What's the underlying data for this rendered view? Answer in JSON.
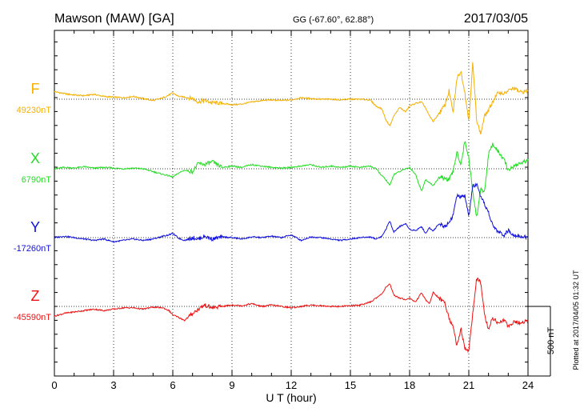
{
  "header": {
    "station": "Mawson (MAW)  [GA]",
    "coords": "GG (-67.60°,  62.88°)",
    "date": "2017/03/05"
  },
  "footer": {
    "plotted": "Plotted at 2017/04/05 01:32 UT"
  },
  "chart_data": {
    "type": "line",
    "title": "Mawson (MAW)  [GA]",
    "xlabel": "U T (hour)",
    "xlim": [
      0,
      24
    ],
    "xticks": [
      "0",
      "3",
      "6",
      "9",
      "12",
      "15",
      "18",
      "21",
      "24"
    ],
    "grid": true,
    "scale_bar": "500 nT",
    "colors": {
      "F": "#f5b000",
      "X": "#22dd22",
      "Y": "#1010dd",
      "Z": "#ee1111"
    },
    "series": [
      {
        "name": "F",
        "baseline": "49230nT",
        "color": "#f5b000",
        "x": [
          0,
          0.5,
          1,
          1.5,
          2,
          2.5,
          3,
          3.5,
          4,
          4.5,
          5,
          5.5,
          5.8,
          6,
          6.3,
          6.6,
          7,
          7.3,
          7.6,
          8,
          8.5,
          9,
          9.5,
          10,
          10.5,
          11,
          11.5,
          12,
          12.5,
          13,
          13.5,
          14,
          14.5,
          15,
          15.5,
          16,
          16.3,
          16.6,
          16.8,
          17,
          17.2,
          17.5,
          17.8,
          18,
          18.3,
          18.6,
          18.8,
          19,
          19.2,
          19.5,
          19.8,
          20,
          20.2,
          20.4,
          20.6,
          20.8,
          21,
          21.2,
          21.4,
          21.6,
          21.8,
          22,
          22.2,
          22.5,
          22.8,
          23,
          23.3,
          23.6,
          24
        ],
        "y": [
          55,
          40,
          30,
          25,
          35,
          20,
          15,
          10,
          20,
          5,
          -10,
          10,
          30,
          45,
          20,
          15,
          5,
          -20,
          -10,
          -25,
          -30,
          -40,
          -35,
          -20,
          -10,
          -5,
          -10,
          -5,
          10,
          5,
          0,
          0,
          -5,
          0,
          0,
          -5,
          -50,
          -70,
          -150,
          -190,
          -120,
          -60,
          -90,
          -50,
          -30,
          -20,
          -60,
          -120,
          -160,
          -100,
          -40,
          60,
          -100,
          150,
          200,
          50,
          -160,
          260,
          -150,
          -250,
          -120,
          -80,
          -20,
          50,
          40,
          60,
          80,
          50,
          60
        ]
      },
      {
        "name": "X",
        "baseline": "6790nT",
        "color": "#22dd22",
        "x": [
          0,
          0.5,
          1,
          1.5,
          2,
          2.5,
          3,
          3.5,
          4,
          4.5,
          5,
          5.5,
          5.8,
          6,
          6.3,
          6.6,
          7,
          7.3,
          7.6,
          8,
          8.5,
          9,
          9.5,
          10,
          10.5,
          11,
          11.5,
          12,
          12.5,
          13,
          13.5,
          14,
          14.5,
          15,
          15.5,
          16,
          16.3,
          16.6,
          16.8,
          17,
          17.2,
          17.5,
          17.8,
          18,
          18.3,
          18.6,
          18.8,
          19,
          19.2,
          19.5,
          19.8,
          20,
          20.2,
          20.4,
          20.6,
          20.8,
          21,
          21.2,
          21.4,
          21.6,
          21.8,
          22,
          22.2,
          22.5,
          22.8,
          23,
          23.3,
          23.6,
          24
        ],
        "y": [
          0,
          10,
          5,
          15,
          5,
          10,
          5,
          0,
          5,
          0,
          -20,
          -40,
          -50,
          -60,
          -30,
          -10,
          -20,
          40,
          30,
          50,
          10,
          20,
          10,
          30,
          20,
          10,
          5,
          10,
          20,
          30,
          10,
          20,
          10,
          20,
          10,
          20,
          0,
          -50,
          -80,
          -120,
          -40,
          -20,
          0,
          10,
          -40,
          -160,
          -80,
          -100,
          -120,
          -60,
          -70,
          -80,
          -20,
          120,
          30,
          200,
          80,
          -170,
          -350,
          -150,
          -160,
          100,
          180,
          120,
          60,
          -10,
          20,
          40,
          60
        ]
      },
      {
        "name": "Y",
        "baseline": "-17260nT",
        "color": "#1010dd",
        "x": [
          0,
          0.5,
          1,
          1.5,
          2,
          2.5,
          3,
          3.5,
          4,
          4.5,
          5,
          5.5,
          5.8,
          6,
          6.3,
          6.6,
          7,
          7.3,
          7.6,
          8,
          8.5,
          9,
          9.5,
          10,
          10.5,
          11,
          11.5,
          12,
          12.5,
          13,
          13.5,
          14,
          14.5,
          15,
          15.5,
          16,
          16.3,
          16.6,
          16.8,
          17,
          17.2,
          17.5,
          17.8,
          18,
          18.3,
          18.6,
          18.8,
          19,
          19.2,
          19.5,
          19.8,
          20,
          20.2,
          20.4,
          20.6,
          20.8,
          21,
          21.2,
          21.4,
          21.6,
          21.8,
          22,
          22.2,
          22.5,
          22.8,
          23,
          23.3,
          23.6,
          24
        ],
        "y": [
          0,
          10,
          0,
          -10,
          -20,
          -10,
          -30,
          -20,
          -10,
          -20,
          -10,
          10,
          20,
          30,
          -5,
          -20,
          0,
          -10,
          10,
          -10,
          5,
          0,
          -10,
          5,
          0,
          10,
          0,
          20,
          -20,
          5,
          0,
          -10,
          -20,
          -10,
          0,
          5,
          -10,
          10,
          60,
          120,
          40,
          80,
          100,
          60,
          50,
          80,
          30,
          70,
          50,
          100,
          80,
          110,
          160,
          300,
          290,
          300,
          150,
          370,
          380,
          290,
          240,
          180,
          90,
          40,
          20,
          50,
          20,
          10,
          0
        ]
      },
      {
        "name": "Z",
        "baseline": "-45590nT",
        "color": "#ee1111",
        "x": [
          0,
          0.5,
          1,
          1.5,
          2,
          2.5,
          3,
          3.5,
          4,
          4.5,
          5,
          5.5,
          5.8,
          6,
          6.3,
          6.6,
          7,
          7.3,
          7.6,
          8,
          8.5,
          9,
          9.5,
          10,
          10.5,
          11,
          11.5,
          12,
          12.5,
          13,
          13.5,
          14,
          14.5,
          15,
          15.5,
          16,
          16.3,
          16.6,
          16.8,
          17,
          17.2,
          17.5,
          17.8,
          18,
          18.3,
          18.6,
          18.8,
          19,
          19.2,
          19.5,
          19.8,
          20,
          20.2,
          20.4,
          20.6,
          20.8,
          21,
          21.2,
          21.4,
          21.6,
          21.8,
          22,
          22.2,
          22.5,
          22.8,
          23,
          23.3,
          23.6,
          24
        ],
        "y": [
          -70,
          -50,
          -40,
          -30,
          -20,
          -30,
          -20,
          -10,
          -10,
          -20,
          -5,
          -10,
          -30,
          -60,
          -80,
          -100,
          -50,
          -20,
          10,
          -10,
          0,
          10,
          5,
          20,
          0,
          10,
          0,
          -10,
          0,
          10,
          5,
          0,
          0,
          5,
          10,
          30,
          60,
          90,
          140,
          160,
          80,
          60,
          50,
          60,
          30,
          100,
          50,
          20,
          100,
          60,
          20,
          -80,
          -150,
          -280,
          -160,
          -300,
          -320,
          -50,
          200,
          170,
          -60,
          -170,
          -80,
          -120,
          -100,
          -140,
          -110,
          -120,
          -100
        ]
      }
    ]
  }
}
